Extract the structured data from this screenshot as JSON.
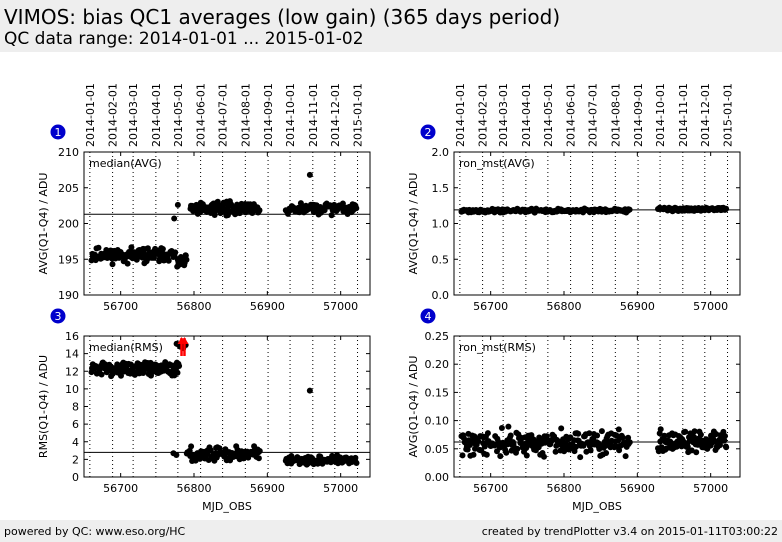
{
  "header": {
    "title": "VIMOS: bias QC1 averages (low gain) (365 days period)",
    "subtitle": "QC data range: 2014-01-01 ... 2015-01-02"
  },
  "footer": {
    "left": "powered by QC: www.eso.org/HC",
    "right": "created by trendPlotter v3.4 on 2015-01-11T03:00:22"
  },
  "date_ticks": [
    {
      "label": "2014-01-01",
      "mjd": 56658
    },
    {
      "label": "2014-02-01",
      "mjd": 56689
    },
    {
      "label": "2014-03-01",
      "mjd": 56717
    },
    {
      "label": "2014-04-01",
      "mjd": 56748
    },
    {
      "label": "2014-05-01",
      "mjd": 56778
    },
    {
      "label": "2014-06-01",
      "mjd": 56809
    },
    {
      "label": "2014-07-01",
      "mjd": 56839
    },
    {
      "label": "2014-08-01",
      "mjd": 56870
    },
    {
      "label": "2014-09-01",
      "mjd": 56901
    },
    {
      "label": "2014-10-01",
      "mjd": 56931
    },
    {
      "label": "2014-11-01",
      "mjd": 56962
    },
    {
      "label": "2014-12-01",
      "mjd": 56992
    },
    {
      "label": "2015-01-01",
      "mjd": 57023
    }
  ],
  "colors": {
    "points": "#000000",
    "marker": "#0000cc",
    "arrow": "#ff0000",
    "background": "#eeeeee"
  },
  "chart_data": [
    {
      "type": "scatter",
      "panel_number": "1",
      "label": "median(AVG)",
      "ylabel": "AVG(Q1-Q4) / ADU",
      "xlabel": "",
      "xlim": [
        56650,
        57040
      ],
      "ylim": [
        190,
        210
      ],
      "xticks": [
        56700,
        56800,
        56900,
        57000
      ],
      "yticks": [
        190,
        195,
        200,
        205,
        210
      ],
      "reference_line": 201.3,
      "segments": [
        {
          "x0": 56660,
          "x1": 56775,
          "mean": 195.6,
          "spread": 0.8,
          "n": 120,
          "seed": 11
        },
        {
          "x0": 56777,
          "x1": 56790,
          "mean": 194.8,
          "spread": 0.7,
          "n": 22,
          "seed": 12
        },
        {
          "x0": 56795,
          "x1": 56890,
          "mean": 202.2,
          "spread": 0.7,
          "n": 110,
          "seed": 13
        },
        {
          "x0": 56925,
          "x1": 57022,
          "mean": 202.1,
          "spread": 0.6,
          "n": 100,
          "seed": 14
        }
      ],
      "points": [
        {
          "x": 56773,
          "y": 200.7
        },
        {
          "x": 56778,
          "y": 202.6
        },
        {
          "x": 56958,
          "y": 206.8
        }
      ]
    },
    {
      "type": "scatter",
      "panel_number": "2",
      "label": "ron_mst(AVG)",
      "ylabel": "AVG(Q1-Q4) / ADU",
      "xlabel": "",
      "xlim": [
        56650,
        57040
      ],
      "ylim": [
        0.0,
        2.0
      ],
      "xticks": [
        56700,
        56800,
        56900,
        57000
      ],
      "yticks": [
        0.0,
        0.5,
        1.0,
        1.5,
        2.0
      ],
      "reference_line": 1.19,
      "segments": [
        {
          "x0": 56660,
          "x1": 56890,
          "mean": 1.18,
          "spread": 0.02,
          "n": 200,
          "seed": 21
        },
        {
          "x0": 56928,
          "x1": 57022,
          "mean": 1.2,
          "spread": 0.02,
          "n": 90,
          "seed": 22
        }
      ],
      "points": []
    },
    {
      "type": "scatter",
      "panel_number": "3",
      "label": "median(RMS)",
      "ylabel": "RMS(Q1-Q4) / ADU",
      "xlabel": "MJD_OBS",
      "xlim": [
        56650,
        57040
      ],
      "ylim": [
        0,
        16
      ],
      "xticks": [
        56700,
        56800,
        56900,
        57000
      ],
      "yticks": [
        0,
        2,
        4,
        6,
        8,
        10,
        12,
        14,
        16
      ],
      "reference_line": 2.8,
      "segments": [
        {
          "x0": 56660,
          "x1": 56780,
          "mean": 12.3,
          "spread": 0.6,
          "n": 130,
          "seed": 31
        },
        {
          "x0": 56776,
          "x1": 56790,
          "mean": 15.0,
          "spread": 0.4,
          "n": 10,
          "seed": 32
        },
        {
          "x0": 56790,
          "x1": 56890,
          "mean": 2.6,
          "spread": 0.7,
          "n": 110,
          "seed": 33
        },
        {
          "x0": 56925,
          "x1": 57022,
          "mean": 1.9,
          "spread": 0.4,
          "n": 100,
          "seed": 34
        }
      ],
      "points": [
        {
          "x": 56958,
          "y": 9.8
        },
        {
          "x": 56772,
          "y": 2.7
        },
        {
          "x": 56776,
          "y": 2.5
        }
      ],
      "arrows": [
        {
          "x": 56783
        },
        {
          "x": 56787
        }
      ]
    },
    {
      "type": "scatter",
      "panel_number": "4",
      "label": "ron_mst(RMS)",
      "ylabel": "AVG(Q1-Q4) / ADU",
      "xlabel": "MJD_OBS",
      "xlim": [
        56650,
        57040
      ],
      "ylim": [
        0.0,
        0.25
      ],
      "xticks": [
        56700,
        56800,
        56900,
        57000
      ],
      "yticks": [
        0.0,
        0.05,
        0.1,
        0.15,
        0.2,
        0.25
      ],
      "reference_line": 0.062,
      "segments": [
        {
          "x0": 56660,
          "x1": 56890,
          "mean": 0.06,
          "spread": 0.018,
          "n": 230,
          "seed": 41
        },
        {
          "x0": 56928,
          "x1": 57022,
          "mean": 0.062,
          "spread": 0.015,
          "n": 100,
          "seed": 42
        }
      ],
      "points": []
    }
  ]
}
